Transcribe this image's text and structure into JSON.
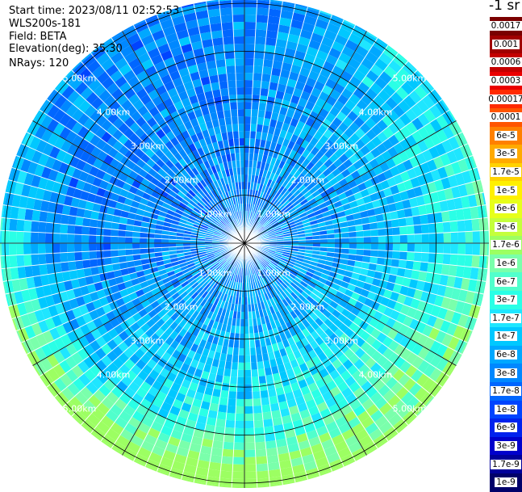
{
  "header": {
    "start_time": "Start time: 2023/08/11 02:52:53",
    "instrument": "WLS200s-181",
    "field": "Field: BETA",
    "elevation": "Elevation(deg): 35.30",
    "nrays": "NRays: 120"
  },
  "colorbar": {
    "title": "-1 sr",
    "entries": [
      {
        "label": "0.0017",
        "color": "#7a0000"
      },
      {
        "label": "0.001",
        "color": "#a00000"
      },
      {
        "label": "0.0006",
        "color": "#c40000"
      },
      {
        "label": "0.0003",
        "color": "#ea0000"
      },
      {
        "label": "0.00017",
        "color": "#ff2a00"
      },
      {
        "label": "0.0001",
        "color": "#ff5500"
      },
      {
        "label": "6e-5",
        "color": "#ff8000"
      },
      {
        "label": "3e-5",
        "color": "#ffaa00"
      },
      {
        "label": "1.7e-5",
        "color": "#ffd200"
      },
      {
        "label": "1e-5",
        "color": "#fff000"
      },
      {
        "label": "6e-6",
        "color": "#e6ff1a"
      },
      {
        "label": "3e-6",
        "color": "#c4ff3c"
      },
      {
        "label": "1.7e-6",
        "color": "#9cff62"
      },
      {
        "label": "1e-6",
        "color": "#7affab"
      },
      {
        "label": "6e-7",
        "color": "#50ffcc"
      },
      {
        "label": "3e-7",
        "color": "#2affe6"
      },
      {
        "label": "1.7e-7",
        "color": "#1ee6ff"
      },
      {
        "label": "1e-7",
        "color": "#00c8ff"
      },
      {
        "label": "6e-8",
        "color": "#00a8ff"
      },
      {
        "label": "3e-8",
        "color": "#0088ff"
      },
      {
        "label": "1.7e-8",
        "color": "#0066ff"
      },
      {
        "label": "1e-8",
        "color": "#0044ff"
      },
      {
        "label": "6e-9",
        "color": "#0022ee"
      },
      {
        "label": "3e-9",
        "color": "#0000cc"
      },
      {
        "label": "1.7e-9",
        "color": "#00009a"
      },
      {
        "label": "1e-9",
        "color": "#00006a"
      }
    ]
  },
  "chart_data": {
    "type": "heatmap",
    "projection": "polar",
    "field": "BETA",
    "nrays": 120,
    "range_rings_km": [
      1,
      2,
      3,
      4,
      5
    ],
    "ring_labels": [
      "1.00km",
      "2.00km",
      "3.00km",
      "4.00km",
      "5.00km"
    ],
    "colorscale": "jet",
    "value_min": 1e-09,
    "value_max": 0.0017,
    "typical_level_index": {
      "north": 19,
      "east": 15,
      "south": 14,
      "west": 19,
      "center": 19
    }
  }
}
